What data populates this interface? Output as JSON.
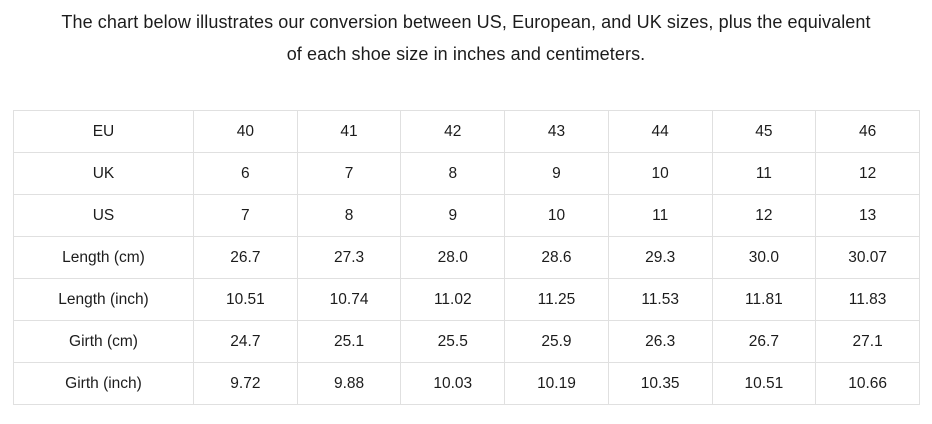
{
  "caption": {
    "line1": "The chart below illustrates our conversion between US, European, and UK sizes, plus the equivalent",
    "line2": "of each shoe size in inches and centimeters."
  },
  "chart_data": {
    "type": "table",
    "title": "The chart below illustrates our conversion between US, European, and UK sizes, plus the equivalent of each shoe size in inches and centimeters.",
    "row_headers": [
      "EU",
      "UK",
      "US",
      "Length (cm)",
      "Length (inch)",
      "Girth (cm)",
      "Girth (inch)"
    ],
    "rows": [
      {
        "label": "EU",
        "values": [
          "40",
          "41",
          "42",
          "43",
          "44",
          "45",
          "46"
        ]
      },
      {
        "label": "UK",
        "values": [
          "6",
          "7",
          "8",
          "9",
          "10",
          "11",
          "12"
        ]
      },
      {
        "label": "US",
        "values": [
          "7",
          "8",
          "9",
          "10",
          "11",
          "12",
          "13"
        ]
      },
      {
        "label": "Length (cm)",
        "values": [
          "26.7",
          "27.3",
          "28.0",
          "28.6",
          "29.3",
          "30.0",
          "30.07"
        ]
      },
      {
        "label": "Length (inch)",
        "values": [
          "10.51",
          "10.74",
          "11.02",
          "11.25",
          "11.53",
          "11.81",
          "11.83"
        ]
      },
      {
        "label": "Girth (cm)",
        "values": [
          "24.7",
          "25.1",
          "25.5",
          "25.9",
          "26.3",
          "26.7",
          "27.1"
        ]
      },
      {
        "label": "Girth (inch)",
        "values": [
          "9.72",
          "9.88",
          "10.03",
          "10.19",
          "10.35",
          "10.51",
          "10.66"
        ]
      }
    ],
    "layout": {
      "grid": true,
      "cell_text_align": "center"
    }
  },
  "colors": {
    "text": "#1c1c1c",
    "border": "#e0e0e0",
    "background": "#ffffff"
  }
}
